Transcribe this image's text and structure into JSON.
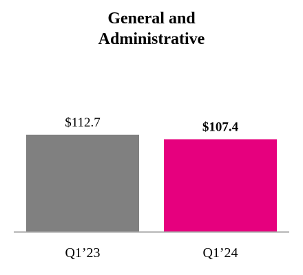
{
  "chart_data": {
    "type": "bar",
    "title": "General and Administrative",
    "categories": [
      "Q1’23",
      "Q1’24"
    ],
    "values": [
      112.7,
      107.4
    ],
    "value_labels": [
      "$112.7",
      "$107.4"
    ],
    "colors": [
      "#808080",
      "#e6007e"
    ]
  }
}
